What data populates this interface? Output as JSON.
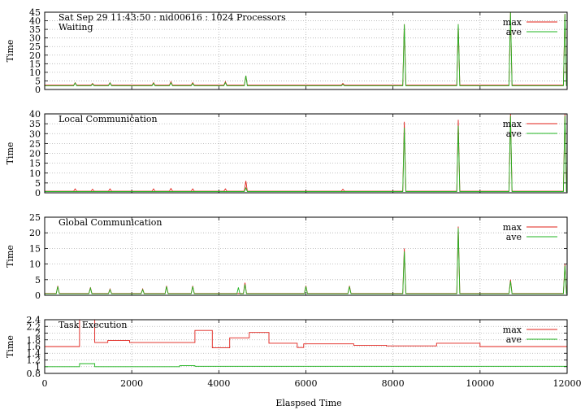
{
  "x_axis": {
    "label": "Elaspsed Time",
    "ticks": [
      0,
      2000,
      4000,
      6000,
      8000,
      10000,
      12000
    ],
    "range": [
      0,
      12000
    ]
  },
  "colors": {
    "max": "#e0201a",
    "ave": "#22b422",
    "grid": "#b0b0b0"
  },
  "legend": {
    "max": "max",
    "ave": "ave",
    "placement": "top-right"
  },
  "chart_data": [
    {
      "type": "line",
      "header": "Sat Sep 29 11:43:50 : nid00616 : 1024 Processors",
      "title": "Waiting",
      "ylabel": "Time",
      "ylim": [
        0,
        45
      ],
      "yticks": [
        0,
        5,
        10,
        15,
        20,
        25,
        30,
        35,
        40,
        45
      ],
      "legend": true,
      "series": [
        {
          "name": "max",
          "baseline": 2.5,
          "spikes": [
            [
              700,
              4
            ],
            [
              1100,
              3.5
            ],
            [
              1500,
              4
            ],
            [
              2500,
              4
            ],
            [
              2900,
              4.5
            ],
            [
              3400,
              4
            ],
            [
              4150,
              4.5
            ],
            [
              4620,
              8
            ],
            [
              6850,
              3.5
            ],
            [
              8260,
              38
            ],
            [
              9500,
              38
            ],
            [
              10700,
              45
            ],
            [
              11950,
              44
            ]
          ]
        },
        {
          "name": "ave",
          "baseline": 2.2,
          "spikes": [
            [
              700,
              3.8
            ],
            [
              1100,
              3.2
            ],
            [
              1500,
              3.8
            ],
            [
              2500,
              3.6
            ],
            [
              2900,
              4
            ],
            [
              3400,
              3.5
            ],
            [
              4150,
              4
            ],
            [
              4620,
              8
            ],
            [
              6850,
              3
            ],
            [
              8260,
              38
            ],
            [
              9500,
              38
            ],
            [
              10700,
              45
            ],
            [
              11950,
              44
            ]
          ]
        }
      ]
    },
    {
      "type": "line",
      "title": "Local Communication",
      "ylabel": "Time",
      "ylim": [
        0,
        40
      ],
      "yticks": [
        0,
        5,
        10,
        15,
        20,
        25,
        30,
        35,
        40
      ],
      "legend": true,
      "series": [
        {
          "name": "max",
          "baseline": 0.8,
          "spikes": [
            [
              700,
              2
            ],
            [
              1100,
              1.8
            ],
            [
              1500,
              2
            ],
            [
              2500,
              2
            ],
            [
              2900,
              2.2
            ],
            [
              3400,
              2
            ],
            [
              4150,
              2
            ],
            [
              4620,
              6
            ],
            [
              6850,
              1.8
            ],
            [
              8260,
              36
            ],
            [
              9500,
              37
            ],
            [
              10700,
              40
            ],
            [
              11950,
              40
            ]
          ]
        },
        {
          "name": "ave",
          "baseline": 0.6,
          "spikes": [
            [
              4620,
              2.5
            ],
            [
              8260,
              33
            ],
            [
              9500,
              34
            ],
            [
              10700,
              39
            ],
            [
              11950,
              39
            ]
          ]
        }
      ]
    },
    {
      "type": "line",
      "title": "Global Communication",
      "ylabel": "Time",
      "ylim": [
        0,
        25
      ],
      "yticks": [
        0,
        5,
        10,
        15,
        20,
        25
      ],
      "legend": true,
      "series": [
        {
          "name": "max",
          "baseline": 0.6,
          "spikes": [
            [
              300,
              3
            ],
            [
              1050,
              2.5
            ],
            [
              1500,
              2
            ],
            [
              2250,
              2
            ],
            [
              2800,
              3
            ],
            [
              3400,
              3
            ],
            [
              4600,
              4
            ],
            [
              6000,
              3
            ],
            [
              7000,
              3
            ],
            [
              8260,
              15
            ],
            [
              9500,
              22
            ],
            [
              10700,
              5
            ],
            [
              11950,
              10
            ]
          ]
        },
        {
          "name": "ave",
          "baseline": 0.5,
          "spikes": [
            [
              300,
              2.8
            ],
            [
              1050,
              2.3
            ],
            [
              1500,
              1.8
            ],
            [
              2250,
              1.8
            ],
            [
              2800,
              2.8
            ],
            [
              3400,
              2.8
            ],
            [
              4450,
              2.5
            ],
            [
              4600,
              3.5
            ],
            [
              6000,
              2.8
            ],
            [
              7000,
              2.8
            ],
            [
              8260,
              14
            ],
            [
              9500,
              21.5
            ],
            [
              10700,
              4.5
            ],
            [
              11950,
              9.5
            ]
          ]
        }
      ]
    },
    {
      "type": "line",
      "title": "Task Execution",
      "ylabel": "Time",
      "ylim": [
        0.8,
        2.4
      ],
      "yticks": [
        0.8,
        1,
        1.2,
        1.4,
        1.6,
        1.8,
        2,
        2.2,
        2.4
      ],
      "legend": true,
      "series": [
        {
          "name": "max",
          "steps": [
            [
              0,
              1.6
            ],
            [
              800,
              2.4
            ],
            [
              1150,
              1.72
            ],
            [
              1450,
              1.78
            ],
            [
              1950,
              1.72
            ],
            [
              3100,
              1.72
            ],
            [
              3450,
              2.08
            ],
            [
              3850,
              1.56
            ],
            [
              4250,
              1.86
            ],
            [
              4700,
              2.02
            ],
            [
              5150,
              1.7
            ],
            [
              5800,
              1.57
            ],
            [
              5950,
              1.68
            ],
            [
              7100,
              1.64
            ],
            [
              7850,
              1.62
            ],
            [
              9000,
              1.7
            ],
            [
              9750,
              1.7
            ],
            [
              10000,
              1.6
            ],
            [
              12000,
              1.6
            ]
          ]
        },
        {
          "name": "ave",
          "steps": [
            [
              0,
              1.0
            ],
            [
              800,
              1.09
            ],
            [
              1150,
              1.0
            ],
            [
              3100,
              1.03
            ],
            [
              3450,
              1.01
            ],
            [
              12000,
              1.01
            ]
          ]
        }
      ]
    }
  ]
}
